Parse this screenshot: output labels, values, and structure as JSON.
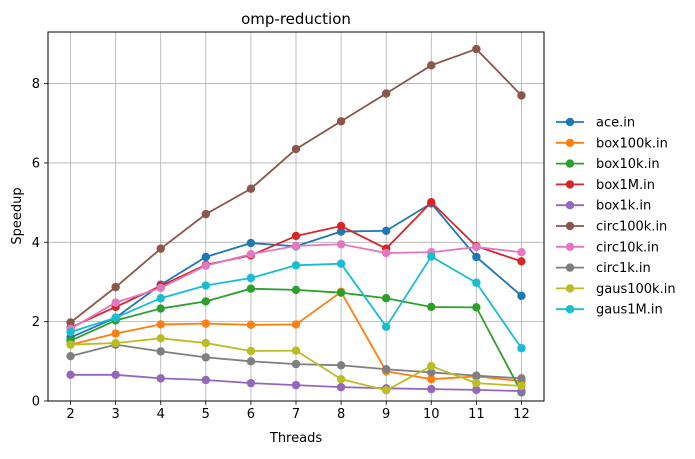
{
  "chart_data": {
    "type": "line",
    "title": "omp-reduction",
    "xlabel": "Threads",
    "ylabel": "Speedup",
    "x": [
      2,
      3,
      4,
      5,
      6,
      7,
      8,
      9,
      10,
      11,
      12
    ],
    "xticks": [
      "2",
      "3",
      "4",
      "5",
      "6",
      "7",
      "8",
      "9",
      "10",
      "11",
      "12"
    ],
    "yticks": [
      "0",
      "2",
      "4",
      "6",
      "8"
    ],
    "xlim": [
      1.5,
      12.5
    ],
    "ylim": [
      0,
      9.3
    ],
    "grid": true,
    "legend_position": "right",
    "series": [
      {
        "name": "ace.in",
        "color": "#1f77b4",
        "values": [
          1.6,
          2.1,
          2.93,
          3.63,
          3.98,
          3.9,
          4.27,
          4.29,
          4.98,
          3.63,
          2.65
        ]
      },
      {
        "name": "box100k.in",
        "color": "#ff7f0e",
        "values": [
          1.42,
          1.7,
          1.93,
          1.95,
          1.92,
          1.93,
          2.75,
          0.75,
          0.55,
          0.62,
          0.5
        ]
      },
      {
        "name": "box10k.in",
        "color": "#2ca02c",
        "values": [
          1.52,
          2.03,
          2.33,
          2.51,
          2.83,
          2.8,
          2.73,
          2.59,
          2.37,
          2.36,
          0.22
        ]
      },
      {
        "name": "box1M.in",
        "color": "#d62728",
        "values": [
          1.85,
          2.37,
          2.9,
          3.43,
          3.67,
          4.16,
          4.41,
          3.84,
          5.01,
          3.9,
          3.52
        ]
      },
      {
        "name": "box1k.in",
        "color": "#9467bd",
        "values": [
          0.66,
          0.66,
          0.57,
          0.53,
          0.45,
          0.4,
          0.35,
          0.32,
          0.3,
          0.28,
          0.25
        ]
      },
      {
        "name": "circ100k.in",
        "color": "#8c564b",
        "values": [
          1.98,
          2.87,
          3.84,
          4.71,
          5.35,
          6.35,
          7.05,
          7.75,
          8.46,
          8.87,
          7.7
        ]
      },
      {
        "name": "circ10k.in",
        "color": "#e377c2",
        "values": [
          1.82,
          2.48,
          2.85,
          3.41,
          3.7,
          3.91,
          3.95,
          3.73,
          3.75,
          3.88,
          3.75
        ]
      },
      {
        "name": "circ1k.in",
        "color": "#7f7f7f",
        "values": [
          1.13,
          1.42,
          1.25,
          1.1,
          1.0,
          0.93,
          0.9,
          0.8,
          0.72,
          0.64,
          0.57
        ]
      },
      {
        "name": "gaus100k.in",
        "color": "#bcbd22",
        "values": [
          1.42,
          1.46,
          1.58,
          1.46,
          1.26,
          1.27,
          0.55,
          0.27,
          0.88,
          0.45,
          0.38
        ]
      },
      {
        "name": "gaus1M.in",
        "color": "#17becf",
        "values": [
          1.74,
          2.1,
          2.59,
          2.91,
          3.1,
          3.42,
          3.46,
          1.87,
          3.64,
          2.98,
          1.33
        ]
      }
    ]
  }
}
